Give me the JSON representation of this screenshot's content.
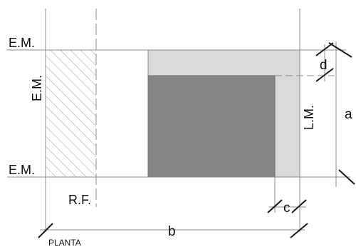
{
  "labels": {
    "em_top": "E.M.",
    "em_left": "E.M.",
    "em_bottom": "E.M.",
    "rf": "R.F.",
    "lm": "L.M.",
    "dim_a": "a",
    "dim_b": "b",
    "dim_c": "c",
    "dim_d": "d",
    "view": "PLANTA"
  },
  "colors": {
    "line": "#8c8c8c",
    "dark_fill": "#858585",
    "light_fill": "#d9d9d9",
    "hatch": "#b3b3b3",
    "tick": "#1a1a1a",
    "text": "#111111"
  }
}
